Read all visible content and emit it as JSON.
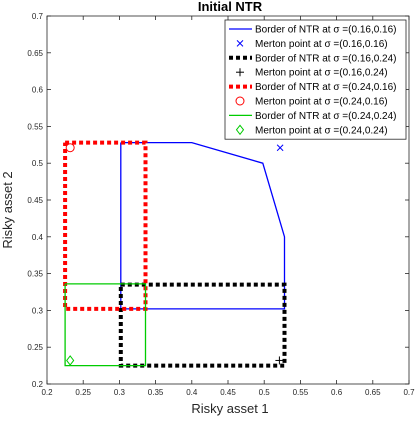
{
  "chart_data": {
    "type": "line",
    "title": "Initial NTR",
    "xlabel": "Risky asset 1",
    "ylabel": "Risky asset 2",
    "xlim": [
      0.2,
      0.7
    ],
    "ylim": [
      0.2,
      0.7
    ],
    "xticks": [
      "0.2",
      "0.25",
      "0.3",
      "0.35",
      "0.4",
      "0.45",
      "0.5",
      "0.55",
      "0.6",
      "0.65",
      "0.7"
    ],
    "yticks": [
      "0.2",
      "0.25",
      "0.3",
      "0.35",
      "0.4",
      "0.45",
      "0.5",
      "0.55",
      "0.6",
      "0.65",
      "0.7"
    ],
    "grid": false,
    "legend_position": "top-right",
    "legend_prefix": "Border of NTR at σ =",
    "legend_prefix_point": "Merton point at σ =",
    "series": [
      {
        "name": "Border of NTR at σ =(0.16,0.16)",
        "kind": "line",
        "color": "#0000ff",
        "style": "solid",
        "x": [
          0.302,
          0.4,
          0.498,
          0.528,
          0.528,
          0.302,
          0.302
        ],
        "y": [
          0.528,
          0.528,
          0.5,
          0.4,
          0.302,
          0.302,
          0.528
        ]
      },
      {
        "name": "Merton point at σ =(0.16,0.16)",
        "kind": "marker",
        "marker": "x",
        "color": "#0000ff",
        "x": [
          0.522
        ],
        "y": [
          0.521
        ]
      },
      {
        "name": "Border of NTR at σ =(0.16,0.24)",
        "kind": "line",
        "color": "#000000",
        "style": "dotted",
        "x": [
          0.302,
          0.528,
          0.528,
          0.302,
          0.302
        ],
        "y": [
          0.335,
          0.335,
          0.225,
          0.225,
          0.335
        ]
      },
      {
        "name": "Merton point at σ =(0.16,0.24)",
        "kind": "marker",
        "marker": "plus",
        "color": "#000000",
        "x": [
          0.521
        ],
        "y": [
          0.232
        ]
      },
      {
        "name": "Border of NTR at σ =(0.24,0.16)",
        "kind": "line",
        "color": "#ff0000",
        "style": "dotted",
        "x": [
          0.225,
          0.336,
          0.336,
          0.225,
          0.225
        ],
        "y": [
          0.528,
          0.528,
          0.302,
          0.302,
          0.528
        ]
      },
      {
        "name": "Merton point at σ =(0.24,0.16)",
        "kind": "marker",
        "marker": "circle",
        "color": "#ff0000",
        "x": [
          0.232
        ],
        "y": [
          0.521
        ]
      },
      {
        "name": "Border of NTR at σ =(0.24,0.24)",
        "kind": "line",
        "color": "#00cc00",
        "style": "solid",
        "x": [
          0.225,
          0.336,
          0.336,
          0.225,
          0.225
        ],
        "y": [
          0.336,
          0.336,
          0.225,
          0.225,
          0.336
        ]
      },
      {
        "name": "Merton point at σ =(0.24,0.24)",
        "kind": "marker",
        "marker": "diamond",
        "color": "#00cc00",
        "x": [
          0.232
        ],
        "y": [
          0.232
        ]
      }
    ],
    "legend": [
      {
        "label": "Border of NTR at σ =(0.16,0.16)",
        "series": 0
      },
      {
        "label": "Merton point at σ =(0.16,0.16)",
        "series": 1
      },
      {
        "label": "Border of NTR at σ =(0.16,0.24)",
        "series": 2
      },
      {
        "label": "Merton point at σ =(0.16,0.24)",
        "series": 3
      },
      {
        "label": "Border of NTR at σ =(0.24,0.16)",
        "series": 4
      },
      {
        "label": "Merton point at σ =(0.24,0.16)",
        "series": 5
      },
      {
        "label": "Border of NTR at σ =(0.24,0.24)",
        "series": 6
      },
      {
        "label": "Merton point at σ =(0.24,0.24)",
        "series": 7
      }
    ]
  }
}
